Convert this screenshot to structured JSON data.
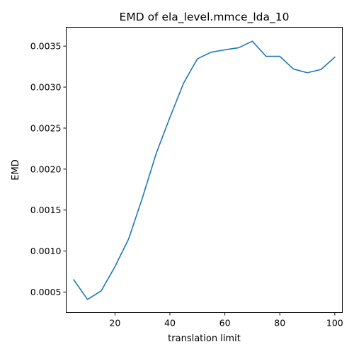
{
  "chart_data": {
    "type": "line",
    "title": "EMD of ela_level.mmce_lda_10",
    "xlabel": "translation limit",
    "ylabel": "EMD",
    "xlim": [
      2.25,
      102.75
    ],
    "ylim": [
      0.00025,
      0.00373
    ],
    "xticks": [
      20,
      40,
      60,
      80,
      100
    ],
    "xtick_labels": [
      "20",
      "40",
      "60",
      "80",
      "100"
    ],
    "yticks": [
      0.0005,
      0.001,
      0.0015,
      0.002,
      0.0025,
      0.003,
      0.0035
    ],
    "ytick_labels": [
      "0.0005",
      "0.0010",
      "0.0015",
      "0.0020",
      "0.0025",
      "0.0030",
      "0.0035"
    ],
    "grid": false,
    "series": [
      {
        "color": "#1f77b4",
        "x": [
          5,
          10,
          15,
          20,
          25,
          30,
          35,
          40,
          45,
          50,
          55,
          60,
          65,
          70,
          75,
          80,
          85,
          90,
          95,
          100
        ],
        "y": [
          0.00065,
          0.00041,
          0.000515,
          0.00081,
          0.00115,
          0.00165,
          0.00219,
          0.00263,
          0.00305,
          0.003345,
          0.003425,
          0.003455,
          0.00348,
          0.00356,
          0.003375,
          0.003375,
          0.00322,
          0.003175,
          0.003215,
          0.003365
        ]
      }
    ]
  }
}
